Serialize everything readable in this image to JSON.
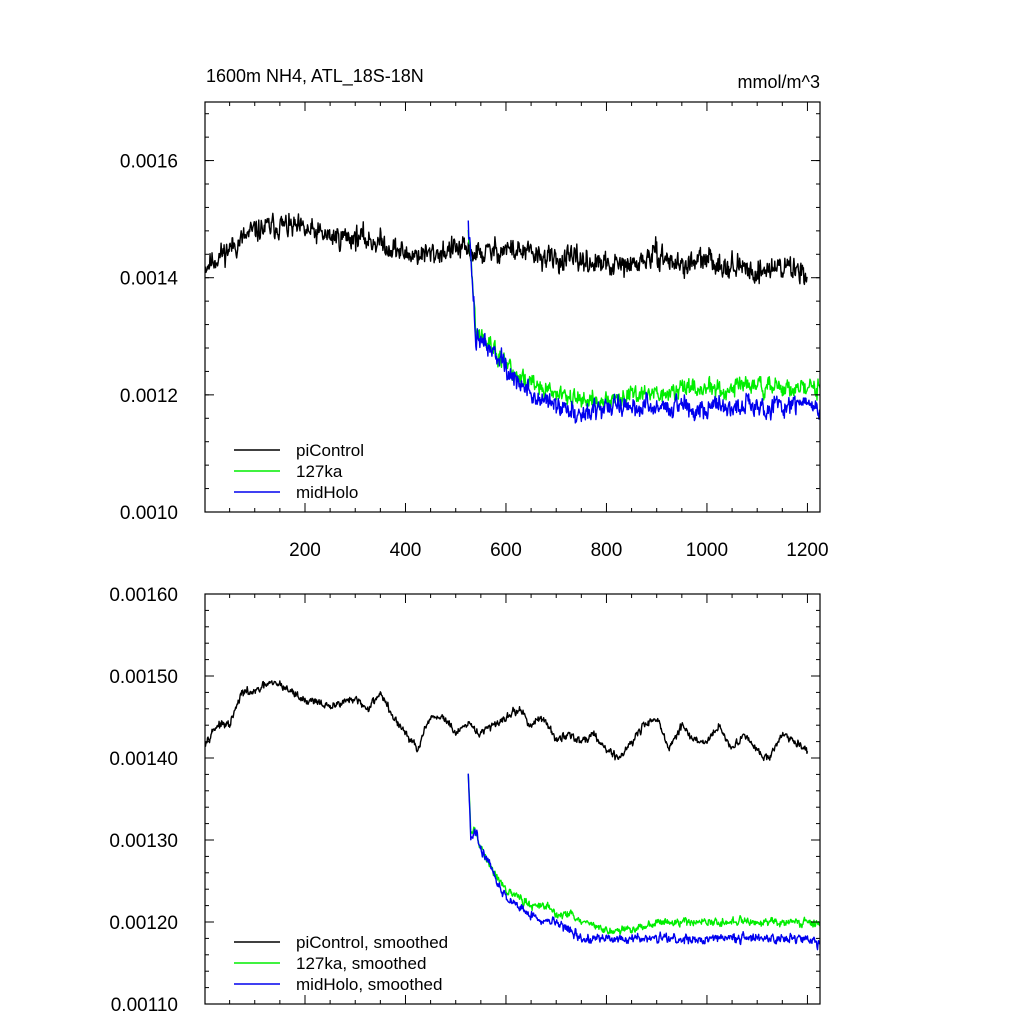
{
  "chart_data": [
    {
      "type": "line",
      "title": "1600m NH4, ATL_18S-18N",
      "units": "mmol/m^3",
      "xlim": [
        1,
        1225
      ],
      "ylim": [
        0.001,
        0.0017
      ],
      "xticks": [
        200,
        400,
        600,
        800,
        1000,
        1200
      ],
      "xtick_labels": [
        "200",
        "400",
        "600",
        "800",
        "1000",
        "1200"
      ],
      "yticks": [
        0.001,
        0.0012,
        0.0014,
        0.0016
      ],
      "ytick_labels": [
        "0.0010",
        "0.0012",
        "0.0014",
        "0.0016"
      ],
      "legend": "bottom-left",
      "series": [
        {
          "name": "piControl",
          "color": "#000000",
          "x": [
            1,
            50,
            100,
            150,
            200,
            250,
            300,
            350,
            400,
            450,
            500,
            550,
            600,
            650,
            700,
            750,
            800,
            850,
            900,
            950,
            1000,
            1050,
            1100,
            1150,
            1200
          ],
          "values": [
            0.00142,
            0.00145,
            0.00148,
            0.00149,
            0.00148,
            0.00147,
            0.00147,
            0.00146,
            0.00144,
            0.00144,
            0.00145,
            0.00144,
            0.00145,
            0.00144,
            0.00143,
            0.00143,
            0.00142,
            0.00142,
            0.00144,
            0.00142,
            0.00143,
            0.00142,
            0.00141,
            0.00142,
            0.00141
          ],
          "noise": 5e-05
        },
        {
          "name": "127ka",
          "color": "#00ee00",
          "x": [
            525,
            540,
            560,
            580,
            600,
            625,
            650,
            675,
            700,
            750,
            800,
            850,
            900,
            950,
            1000,
            1050,
            1100,
            1150,
            1200,
            1225
          ],
          "values": [
            0.00149,
            0.00131,
            0.00129,
            0.00127,
            0.00125,
            0.00123,
            0.00122,
            0.00121,
            0.0012,
            0.00119,
            0.00119,
            0.0012,
            0.0012,
            0.00121,
            0.00121,
            0.00121,
            0.00122,
            0.00121,
            0.00121,
            0.00121
          ],
          "noise": 4e-05
        },
        {
          "name": "midHolo",
          "color": "#0000ee",
          "x": [
            525,
            540,
            560,
            580,
            600,
            625,
            650,
            675,
            700,
            750,
            800,
            850,
            900,
            950,
            1000,
            1050,
            1100,
            1150,
            1200,
            1225
          ],
          "values": [
            0.00149,
            0.0013,
            0.00129,
            0.00127,
            0.00124,
            0.00122,
            0.0012,
            0.00119,
            0.00118,
            0.00117,
            0.00118,
            0.00118,
            0.00118,
            0.00118,
            0.00118,
            0.00118,
            0.00118,
            0.00118,
            0.00119,
            0.00118
          ],
          "noise": 4.5e-05
        }
      ]
    },
    {
      "type": "line",
      "xlim": [
        1,
        1225
      ],
      "ylim": [
        0.0011,
        0.0016
      ],
      "xticks": [
        200,
        400,
        600,
        800,
        1000,
        1200
      ],
      "yticks": [
        0.0011,
        0.0012,
        0.0013,
        0.0014,
        0.0015,
        0.0016
      ],
      "ytick_labels": [
        "0.00110",
        "0.00120",
        "0.00130",
        "0.00140",
        "0.00150",
        "0.00160"
      ],
      "legend": "bottom-left",
      "series": [
        {
          "name": "piControl, smoothed",
          "color": "#000000",
          "x": [
            1,
            25,
            50,
            75,
            100,
            125,
            150,
            175,
            200,
            225,
            250,
            275,
            300,
            325,
            350,
            375,
            400,
            425,
            450,
            475,
            500,
            525,
            550,
            575,
            600,
            625,
            650,
            675,
            700,
            725,
            750,
            775,
            800,
            825,
            850,
            875,
            900,
            925,
            950,
            975,
            1000,
            1025,
            1050,
            1075,
            1100,
            1125,
            1150,
            1175,
            1200
          ],
          "values": [
            0.00142,
            0.00144,
            0.00144,
            0.00148,
            0.00148,
            0.00149,
            0.00149,
            0.00148,
            0.00147,
            0.00147,
            0.00146,
            0.00147,
            0.00147,
            0.00146,
            0.00148,
            0.00145,
            0.00143,
            0.00141,
            0.00145,
            0.00145,
            0.00143,
            0.00144,
            0.00143,
            0.00144,
            0.00145,
            0.00146,
            0.00144,
            0.00145,
            0.00142,
            0.00143,
            0.00142,
            0.00143,
            0.00141,
            0.0014,
            0.00142,
            0.00144,
            0.00145,
            0.00141,
            0.00144,
            0.00142,
            0.00142,
            0.00144,
            0.00141,
            0.00143,
            0.00141,
            0.0014,
            0.00143,
            0.00142,
            0.00141
          ],
          "noise": 1.2e-05
        },
        {
          "name": "127ka, smoothed",
          "color": "#00ee00",
          "x": [
            525,
            530,
            540,
            550,
            560,
            575,
            590,
            600,
            625,
            650,
            675,
            700,
            725,
            750,
            800,
            850,
            900,
            950,
            1000,
            1050,
            1100,
            1150,
            1200,
            1225
          ],
          "values": [
            0.00138,
            0.00131,
            0.00131,
            0.00129,
            0.00128,
            0.00126,
            0.00125,
            0.00124,
            0.00123,
            0.00122,
            0.00122,
            0.00121,
            0.00121,
            0.0012,
            0.00119,
            0.00119,
            0.0012,
            0.0012,
            0.0012,
            0.0012,
            0.0012,
            0.0012,
            0.0012,
            0.0012
          ],
          "noise": 1.2e-05
        },
        {
          "name": "midHolo, smoothed",
          "color": "#0000ee",
          "x": [
            525,
            530,
            540,
            550,
            560,
            575,
            590,
            600,
            625,
            650,
            675,
            700,
            725,
            750,
            800,
            850,
            900,
            950,
            1000,
            1050,
            1100,
            1150,
            1200,
            1225
          ],
          "values": [
            0.00138,
            0.0013,
            0.00131,
            0.00129,
            0.00128,
            0.00126,
            0.00124,
            0.00123,
            0.00122,
            0.00121,
            0.0012,
            0.0012,
            0.00119,
            0.00118,
            0.00118,
            0.00118,
            0.00118,
            0.00118,
            0.00118,
            0.00118,
            0.00118,
            0.00118,
            0.00118,
            0.00117
          ],
          "noise": 1.4e-05
        }
      ]
    }
  ]
}
